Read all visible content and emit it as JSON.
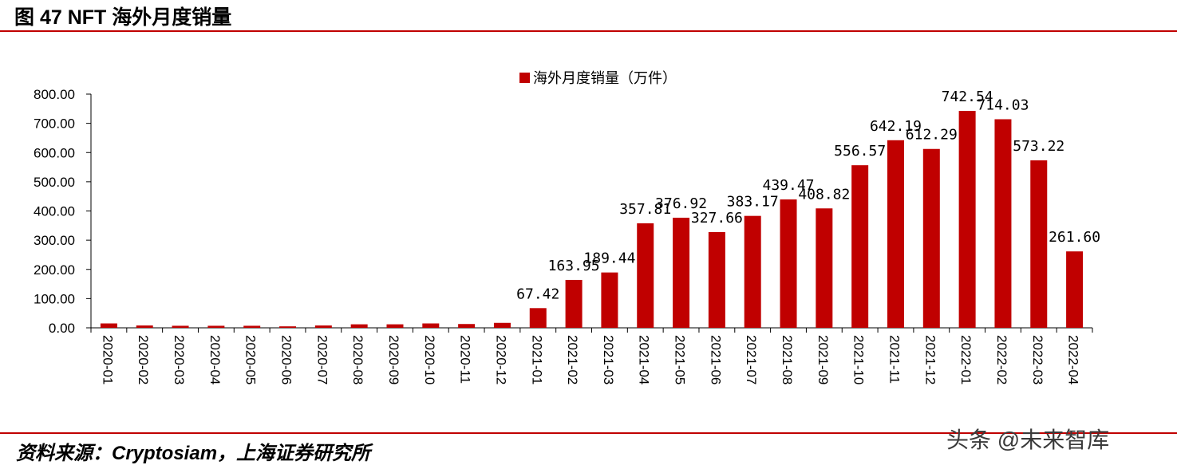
{
  "figure": {
    "title": "图 47 NFT 海外月度销量",
    "source": "资料来源：Cryptosiam，上海证券研究所",
    "watermark": "头条 @未来智库"
  },
  "colors": {
    "bar": "#c00000",
    "rule": "#c00000",
    "axis": "#000000"
  },
  "chart_data": {
    "type": "bar",
    "categories": [
      "2020-01",
      "2020-02",
      "2020-03",
      "2020-04",
      "2020-05",
      "2020-06",
      "2020-07",
      "2020-08",
      "2020-09",
      "2020-10",
      "2020-11",
      "2020-12",
      "2021-01",
      "2021-02",
      "2021-03",
      "2021-04",
      "2021-05",
      "2021-06",
      "2021-07",
      "2021-08",
      "2021-09",
      "2021-10",
      "2021-11",
      "2021-12",
      "2022-01",
      "2022-02",
      "2022-03",
      "2022-04"
    ],
    "series": [
      {
        "name": "海外月度销量（万件）",
        "values": [
          15,
          8,
          7,
          7,
          7,
          5,
          8,
          12,
          12,
          15,
          13,
          17,
          67.42,
          163.95,
          189.44,
          357.81,
          376.92,
          327.66,
          383.17,
          439.47,
          408.82,
          556.57,
          642.19,
          612.29,
          742.54,
          714.03,
          573.22,
          261.6
        ],
        "data_labels": [
          "",
          "",
          "",
          "",
          "",
          "",
          "",
          "",
          "",
          "",
          "",
          "",
          "67.42",
          "163.95",
          "189.44",
          "357.81",
          "376.92",
          "327.66",
          "383.17",
          "439.47",
          "408.82",
          "556.57",
          "642.19",
          "612.29",
          "742.54",
          "714.03",
          "573.22",
          "261.60"
        ]
      }
    ],
    "yticks": [
      "0.00",
      "100.00",
      "200.00",
      "300.00",
      "400.00",
      "500.00",
      "600.00",
      "700.00",
      "800.00"
    ],
    "ylim": [
      0,
      800
    ],
    "legend_position": "top",
    "grid": false
  }
}
